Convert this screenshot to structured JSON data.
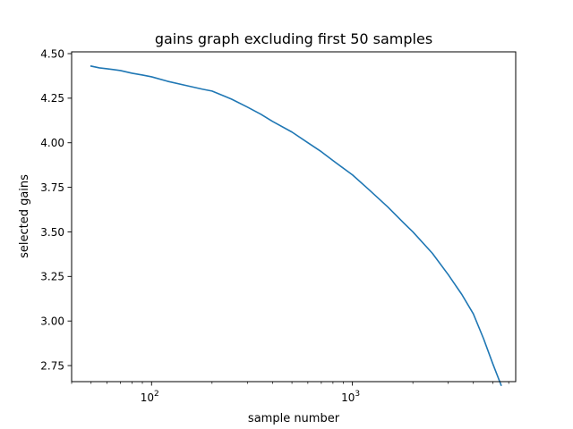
{
  "chart_data": {
    "type": "line",
    "title": "gains graph excluding first 50 samples",
    "xlabel": "sample number",
    "ylabel": "selected gains",
    "xscale": "log",
    "xlim": [
      40,
      6500
    ],
    "ylim": [
      2.66,
      4.51
    ],
    "grid": false,
    "line_color": "#1f77b4",
    "x_ticks": [
      {
        "value": 100,
        "base": "10",
        "exp": "2"
      },
      {
        "value": 1000,
        "base": "10",
        "exp": "3"
      }
    ],
    "y_ticks": [
      {
        "value": 2.75,
        "label": "2.75"
      },
      {
        "value": 3.0,
        "label": "3.00"
      },
      {
        "value": 3.25,
        "label": "3.25"
      },
      {
        "value": 3.5,
        "label": "3.50"
      },
      {
        "value": 3.75,
        "label": "3.75"
      },
      {
        "value": 4.0,
        "label": "4.00"
      },
      {
        "value": 4.25,
        "label": "4.25"
      },
      {
        "value": 4.5,
        "label": "4.50"
      }
    ],
    "series": [
      {
        "x": [
          50,
          55,
          60,
          65,
          70,
          80,
          90,
          100,
          120,
          150,
          180,
          200,
          250,
          300,
          350,
          400,
          500,
          600,
          700,
          800,
          1000,
          1200,
          1500,
          1800,
          2000,
          2500,
          3000,
          3500,
          4000,
          4500,
          5000,
          5500
        ],
        "y": [
          4.43,
          4.42,
          4.415,
          4.41,
          4.405,
          4.39,
          4.38,
          4.37,
          4.345,
          4.32,
          4.3,
          4.29,
          4.245,
          4.2,
          4.16,
          4.12,
          4.06,
          4.0,
          3.95,
          3.9,
          3.82,
          3.74,
          3.64,
          3.55,
          3.5,
          3.38,
          3.26,
          3.15,
          3.04,
          2.9,
          2.76,
          2.64
        ]
      }
    ]
  }
}
